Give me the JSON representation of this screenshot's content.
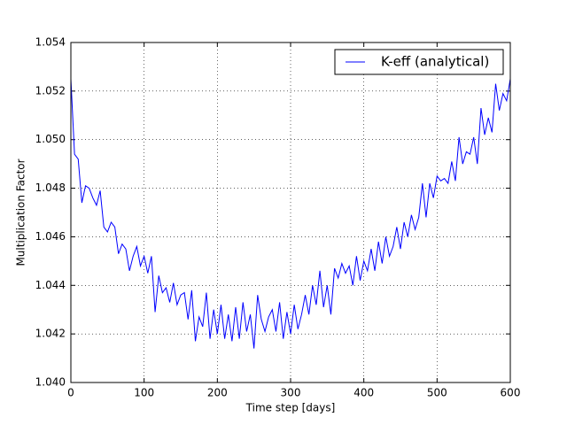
{
  "chart_data": {
    "type": "line",
    "xlabel": "Time step [days]",
    "ylabel": "Multiplication Factor",
    "x": [
      0,
      5,
      10,
      15,
      20,
      25,
      30,
      35,
      40,
      45,
      50,
      55,
      60,
      65,
      70,
      75,
      80,
      85,
      90,
      95,
      100,
      105,
      110,
      115,
      120,
      125,
      130,
      135,
      140,
      145,
      150,
      155,
      160,
      165,
      170,
      175,
      180,
      185,
      190,
      195,
      200,
      205,
      210,
      215,
      220,
      225,
      230,
      235,
      240,
      245,
      250,
      255,
      260,
      265,
      270,
      275,
      280,
      285,
      290,
      295,
      300,
      305,
      310,
      315,
      320,
      325,
      330,
      335,
      340,
      345,
      350,
      355,
      360,
      365,
      370,
      375,
      380,
      385,
      390,
      395,
      400,
      405,
      410,
      415,
      420,
      425,
      430,
      435,
      440,
      445,
      450,
      455,
      460,
      465,
      470,
      475,
      480,
      485,
      490,
      495,
      500,
      505,
      510,
      515,
      520,
      525,
      530,
      535,
      540,
      545,
      550,
      555,
      560,
      565,
      570,
      575,
      580,
      585,
      590,
      595,
      600
    ],
    "series": [
      {
        "name": "K-eff (analytical)",
        "color": "#0000ff",
        "values": [
          1.0525,
          1.0494,
          1.0492,
          1.0474,
          1.0481,
          1.048,
          1.0476,
          1.0473,
          1.0479,
          1.0464,
          1.0462,
          1.0466,
          1.0464,
          1.0453,
          1.0457,
          1.0455,
          1.0446,
          1.0452,
          1.0456,
          1.0448,
          1.0452,
          1.0445,
          1.0452,
          1.0429,
          1.0444,
          1.0437,
          1.0439,
          1.0433,
          1.0441,
          1.0432,
          1.0436,
          1.0437,
          1.0426,
          1.0438,
          1.0417,
          1.0427,
          1.0423,
          1.0437,
          1.0418,
          1.043,
          1.042,
          1.0432,
          1.0418,
          1.0428,
          1.0417,
          1.0431,
          1.0418,
          1.0433,
          1.0421,
          1.0428,
          1.0414,
          1.0436,
          1.0426,
          1.0421,
          1.0427,
          1.043,
          1.0421,
          1.0433,
          1.0418,
          1.0429,
          1.042,
          1.0432,
          1.0422,
          1.0428,
          1.0436,
          1.0428,
          1.044,
          1.0432,
          1.0446,
          1.0431,
          1.044,
          1.0428,
          1.0447,
          1.0443,
          1.0449,
          1.0445,
          1.0448,
          1.044,
          1.0452,
          1.0442,
          1.045,
          1.0446,
          1.0455,
          1.0446,
          1.0458,
          1.0449,
          1.046,
          1.0452,
          1.0456,
          1.0464,
          1.0455,
          1.0466,
          1.046,
          1.0469,
          1.0463,
          1.0468,
          1.0482,
          1.0468,
          1.0482,
          1.0476,
          1.0485,
          1.0483,
          1.0484,
          1.0482,
          1.0491,
          1.0483,
          1.0501,
          1.049,
          1.0495,
          1.0494,
          1.0501,
          1.049,
          1.0513,
          1.0502,
          1.0509,
          1.0503,
          1.0523,
          1.0512,
          1.0519,
          1.0516,
          1.0525
        ]
      }
    ],
    "xlim": [
      0,
      600
    ],
    "xticks": [
      0,
      100,
      200,
      300,
      400,
      500,
      600
    ],
    "ylim": [
      1.04,
      1.054
    ],
    "yticks": [
      {
        "value": 1.04,
        "label": "1.040"
      },
      {
        "value": 1.042,
        "label": "1.042"
      },
      {
        "value": 1.044,
        "label": "1.044"
      },
      {
        "value": 1.046,
        "label": "1.046"
      },
      {
        "value": 1.048,
        "label": "1.048"
      },
      {
        "value": 1.05,
        "label": "1.050"
      },
      {
        "value": 1.052,
        "label": "1.052"
      },
      {
        "value": 1.054,
        "label": "1.054"
      }
    ],
    "grid": true,
    "legend": "upper right"
  }
}
